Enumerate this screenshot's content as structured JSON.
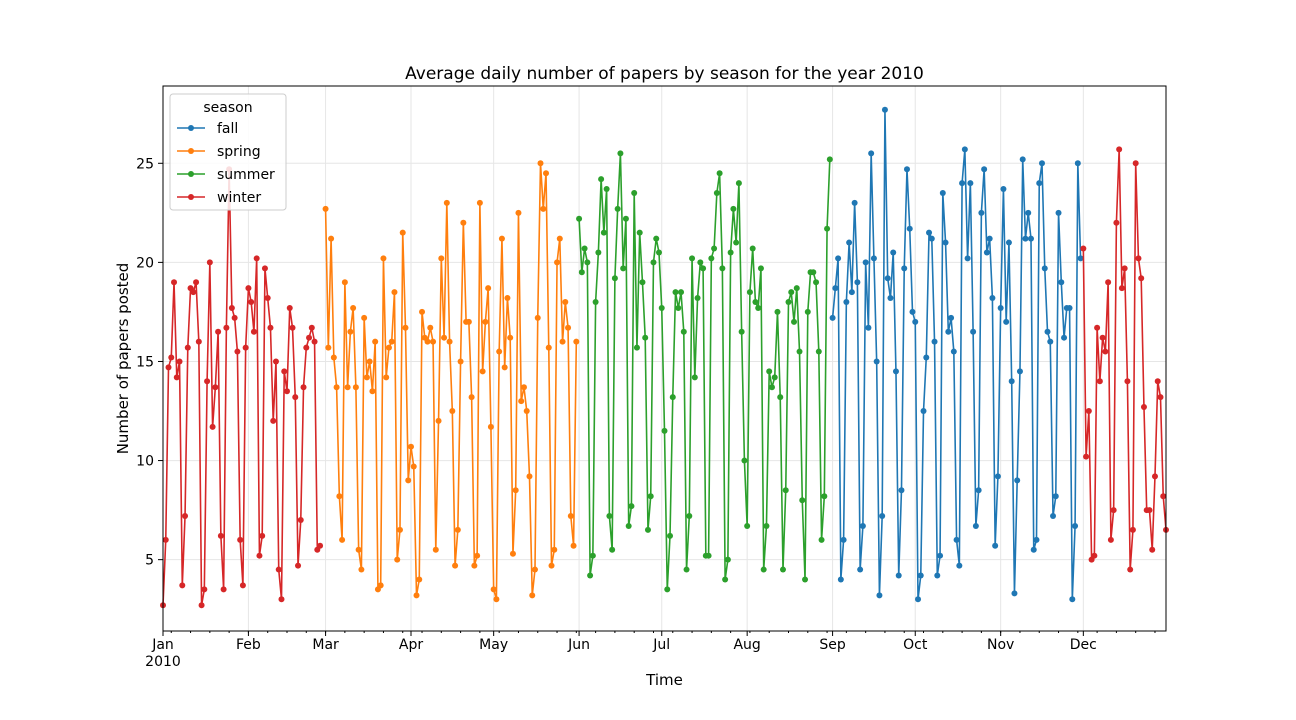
{
  "chart_data": {
    "type": "line",
    "title": "Average daily number of papers by season for the year 2010",
    "xlabel": "Time",
    "ylabel": "Number of papers posted",
    "x_range": [
      "2010-01-01",
      "2010-12-31"
    ],
    "ylim": [
      1.4,
      28.9
    ],
    "grid": true,
    "legend": {
      "title": "season",
      "position": "top-left"
    },
    "x_ticks": [
      {
        "date": "2010-01-01",
        "label": "Jan",
        "sublabel": "2010"
      },
      {
        "date": "2010-02-01",
        "label": "Feb"
      },
      {
        "date": "2010-03-01",
        "label": "Mar"
      },
      {
        "date": "2010-04-01",
        "label": "Apr"
      },
      {
        "date": "2010-05-01",
        "label": "May"
      },
      {
        "date": "2010-06-01",
        "label": "Jun"
      },
      {
        "date": "2010-07-01",
        "label": "Jul"
      },
      {
        "date": "2010-08-01",
        "label": "Aug"
      },
      {
        "date": "2010-09-01",
        "label": "Sep"
      },
      {
        "date": "2010-10-01",
        "label": "Oct"
      },
      {
        "date": "2010-11-01",
        "label": "Nov"
      },
      {
        "date": "2010-12-01",
        "label": "Dec"
      }
    ],
    "y_ticks": [
      5,
      10,
      15,
      20,
      25
    ],
    "series": [
      {
        "name": "fall",
        "color": "#1f77b4",
        "segments": [
          {
            "start": "2010-09-01",
            "values": [
              17.2,
              18.7,
              20.2,
              4.0,
              6.0,
              18.0,
              21.0,
              18.5,
              23.0,
              19.0,
              4.5,
              6.7,
              20.0,
              16.7,
              25.5,
              20.2,
              15.0,
              3.2,
              7.2,
              27.7,
              19.2,
              18.2,
              20.5,
              14.5,
              4.2,
              8.5,
              19.7,
              24.7,
              21.7,
              17.5,
              17.0,
              3.0,
              4.2,
              12.5,
              15.2,
              21.5,
              21.2,
              16.0,
              4.2,
              5.2,
              23.5,
              21.0,
              16.5,
              17.2,
              15.5,
              6.0,
              4.7,
              24.0,
              25.7,
              20.2,
              24.0,
              16.5,
              6.7,
              8.5,
              22.5,
              24.7,
              20.5,
              21.2,
              18.2,
              5.7,
              9.2,
              17.7,
              23.7,
              17.0,
              21.0,
              14.0,
              3.3,
              9.0,
              14.5,
              25.2,
              21.2,
              22.5,
              21.2,
              5.5,
              6.0,
              24.0,
              25.0,
              19.7,
              16.5,
              16.0,
              7.2,
              8.2,
              22.5,
              19.0,
              16.2,
              17.7,
              17.7,
              3.0,
              6.7,
              25.0,
              20.2
            ]
          }
        ]
      },
      {
        "name": "spring",
        "color": "#ff7f0e",
        "segments": [
          {
            "start": "2010-03-01",
            "values": [
              22.7,
              15.7,
              21.2,
              15.2,
              13.7,
              8.2,
              6.0,
              19.0,
              13.7,
              16.5,
              17.7,
              13.7,
              5.5,
              4.5,
              17.2,
              14.2,
              15.0,
              13.5,
              16.0,
              3.5,
              3.7,
              20.2,
              14.2,
              15.7,
              16.0,
              18.5,
              5.0,
              6.5,
              21.5,
              16.7,
              9.0,
              10.7,
              9.7,
              3.2,
              4.0,
              17.5,
              16.2,
              16.0,
              16.7,
              16.0,
              5.5,
              12.0,
              20.2,
              16.2,
              23.0,
              16.0,
              12.5,
              4.7,
              6.5,
              15.0,
              22.0,
              17.0,
              17.0,
              13.2,
              4.7,
              5.2,
              23.0,
              14.5,
              17.0,
              18.7,
              11.7,
              3.5,
              3.0,
              15.5,
              21.2,
              14.7,
              18.2,
              16.2,
              5.3,
              8.5,
              22.5,
              13.0,
              13.7,
              12.5,
              9.2,
              3.2,
              4.5,
              17.2,
              25.0,
              22.7,
              24.5,
              15.7,
              4.7,
              5.5,
              20.0,
              21.2,
              16.0,
              18.0,
              16.7,
              7.2,
              5.7,
              16.0
            ]
          }
        ]
      },
      {
        "name": "summer",
        "color": "#2ca02c",
        "segments": [
          {
            "start": "2010-06-01",
            "values": [
              22.2,
              19.5,
              20.7,
              20.0,
              4.2,
              5.2,
              18.0,
              20.5,
              24.2,
              21.5,
              23.7,
              7.2,
              5.5,
              19.2,
              22.7,
              25.5,
              19.7,
              22.2,
              6.7,
              7.7,
              23.5,
              15.7,
              21.5,
              19.0,
              16.2,
              6.5,
              8.2,
              20.0,
              21.2,
              20.5,
              17.7,
              11.5,
              3.5,
              6.2,
              13.2,
              18.5,
              17.7,
              18.5,
              16.5,
              4.5,
              7.2,
              20.2,
              14.2,
              18.2,
              20.0,
              19.7,
              5.2,
              5.2,
              20.2,
              20.7,
              23.5,
              24.5,
              19.7,
              4.0,
              5.0,
              20.5,
              22.7,
              21.0,
              24.0,
              16.5,
              10.0,
              6.7,
              18.5,
              20.7,
              18.0,
              17.7,
              19.7,
              4.5,
              6.7,
              14.5,
              13.7,
              14.2,
              17.5,
              13.2,
              4.5,
              8.5,
              18.0,
              18.5,
              17.0,
              18.7,
              15.5,
              8.0,
              4.0,
              17.5,
              19.5,
              19.5,
              19.0,
              15.5,
              6.0,
              8.2,
              21.7,
              25.2
            ]
          }
        ]
      },
      {
        "name": "winter",
        "color": "#d62728",
        "segments": [
          {
            "start": "2010-01-01",
            "values": [
              2.7,
              6.0,
              14.7,
              15.2,
              19.0,
              14.2,
              15.0,
              3.7,
              7.2,
              15.7,
              18.7,
              18.5,
              19.0,
              16.0,
              2.7,
              3.5,
              14.0,
              20.0,
              11.7,
              13.7,
              16.5,
              6.2,
              3.5,
              16.7,
              24.7,
              17.7,
              17.2,
              15.5,
              6.0,
              3.7,
              15.7,
              18.7,
              18.0,
              16.5,
              20.2,
              5.2,
              6.2,
              19.7,
              18.2,
              16.7,
              12.0,
              15.0,
              4.5,
              3.0,
              14.5,
              13.5,
              17.7,
              16.7,
              13.2,
              4.7,
              7.0,
              13.7,
              15.7,
              16.2,
              16.7,
              16.0,
              5.5,
              5.7
            ]
          },
          {
            "start": "2010-12-01",
            "values": [
              20.7,
              10.2,
              12.5,
              5.0,
              5.2,
              16.7,
              14.0,
              16.2,
              15.5,
              19.0,
              6.0,
              7.5,
              22.0,
              25.7,
              18.7,
              19.7,
              14.0,
              4.5,
              6.5,
              25.0,
              20.2,
              19.2,
              12.7,
              7.5,
              7.5,
              5.5,
              9.2,
              14.0,
              13.2,
              8.2,
              6.5
            ]
          }
        ]
      }
    ]
  }
}
